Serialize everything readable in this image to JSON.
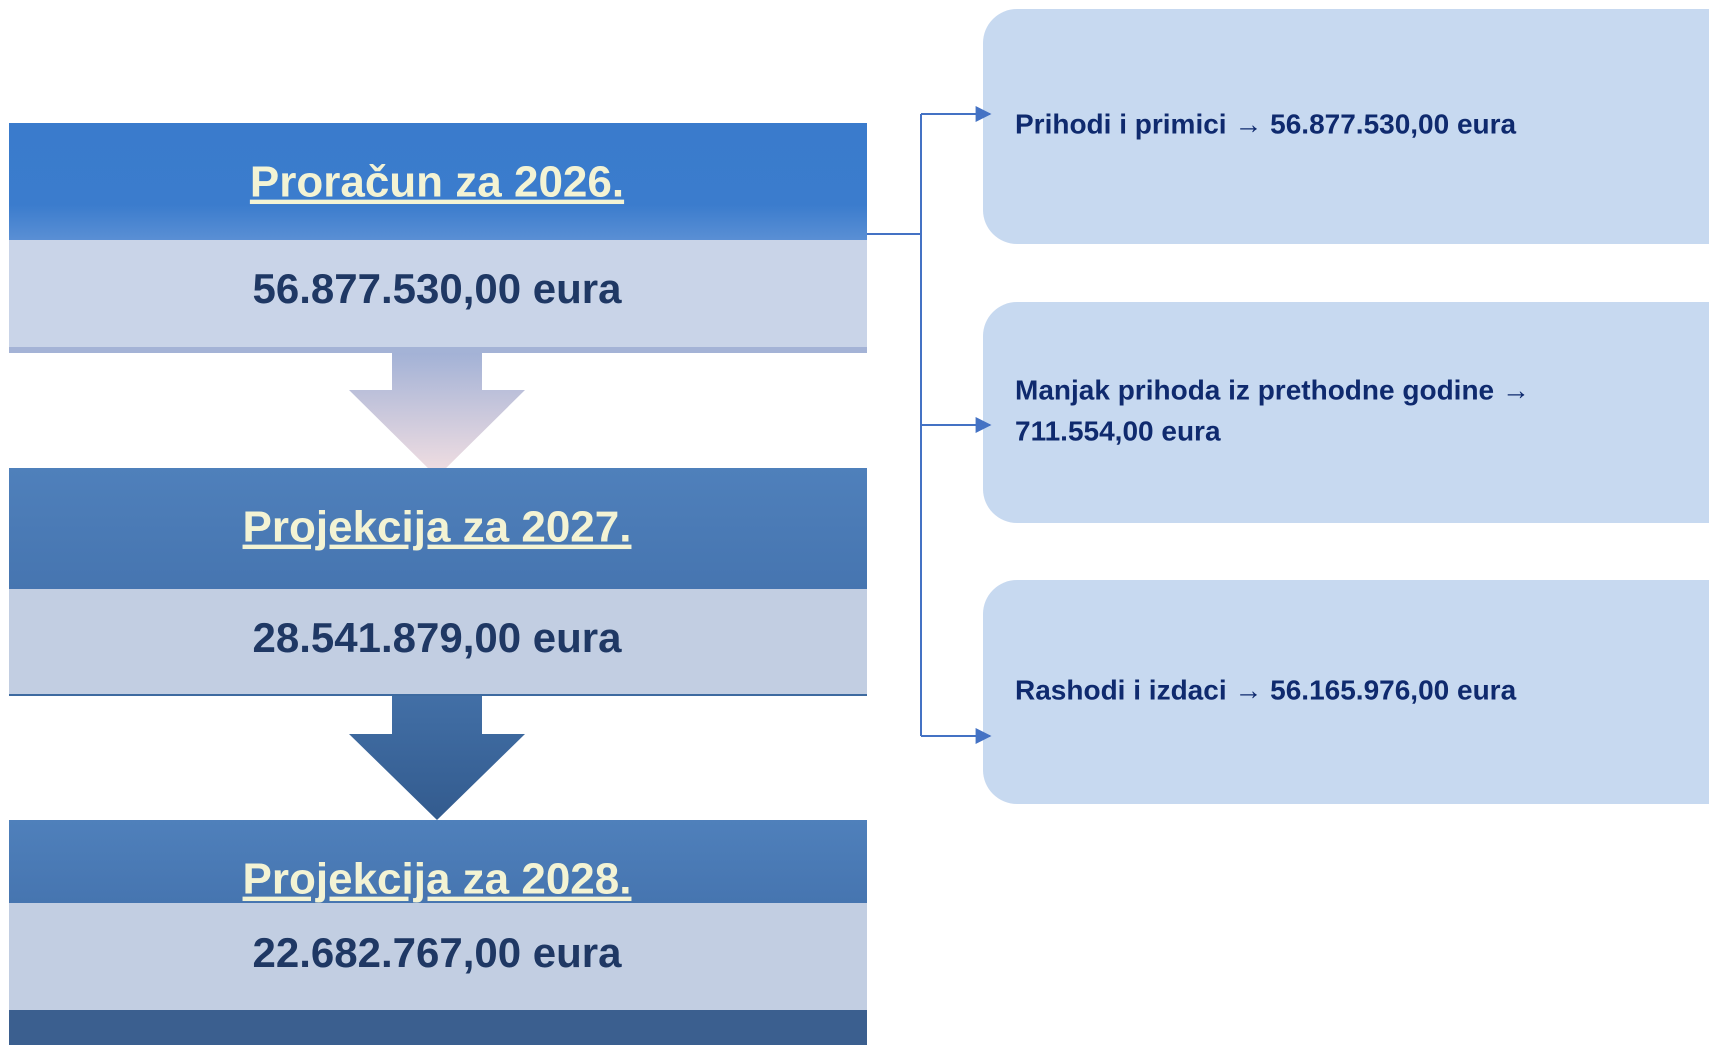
{
  "blocks": [
    {
      "title": "Proračun za 2026.",
      "amount": "56.877.530,00 eura"
    },
    {
      "title": "Projekcija za 2027.",
      "amount": "28.541.879,00 eura"
    },
    {
      "title": "Projekcija za 2028.",
      "amount": "22.682.767,00 eura"
    }
  ],
  "details": [
    {
      "lines": [
        "Prihodi i primici → 56.877.530,00 eura"
      ]
    },
    {
      "lines": [
        "Manjak prihoda iz prethodne godine →",
        "711.554,00 eura"
      ]
    },
    {
      "lines": [
        "Rashodi i izdaci → 56.165.976,00 eura"
      ]
    }
  ]
}
